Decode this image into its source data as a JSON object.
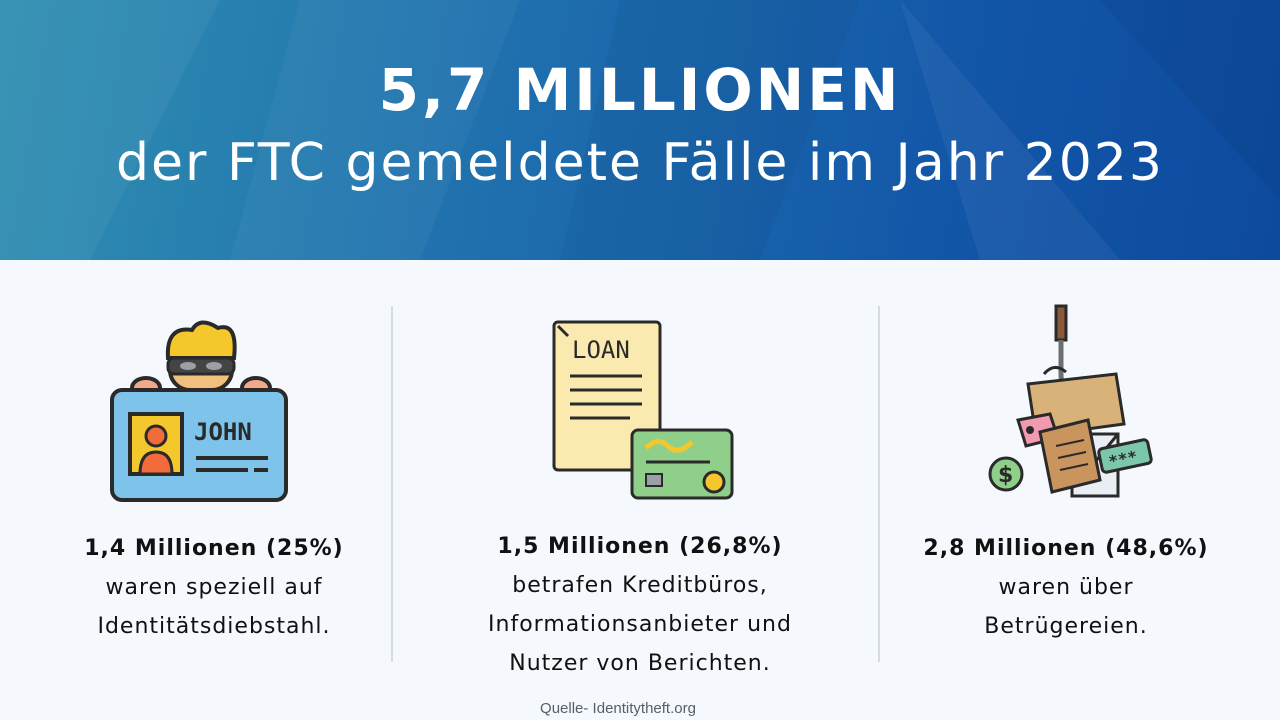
{
  "header": {
    "title": "5,7 MILLIONEN",
    "subtitle": "der FTC gemeldete Fälle im Jahr 2023"
  },
  "columns": [
    {
      "icon": "identity-thief-icon",
      "stat": "1,4 Millionen (25%)",
      "lines": [
        "waren speziell auf",
        "Identitätsdiebstahl."
      ],
      "card_name": "JOHN"
    },
    {
      "icon": "loan-credit-card-icon",
      "stat": "1,5 Millionen (26,8%)",
      "lines": [
        "betrafen Kreditbüros,",
        "Informationsanbieter und",
        "Nutzer von Berichten."
      ],
      "document_label": "LOAN"
    },
    {
      "icon": "phishing-hook-icon",
      "stat": "2,8 Millionen (48,6%)",
      "lines": [
        "waren über",
        "Betrügereien."
      ],
      "dollar_symbol": "$",
      "password_mask": "***"
    }
  ],
  "source": "Quelle- Identitytheft.org",
  "colors": {
    "banner_start": "#2f8fb0",
    "banner_end": "#0d4a9e",
    "text": "#111111"
  }
}
